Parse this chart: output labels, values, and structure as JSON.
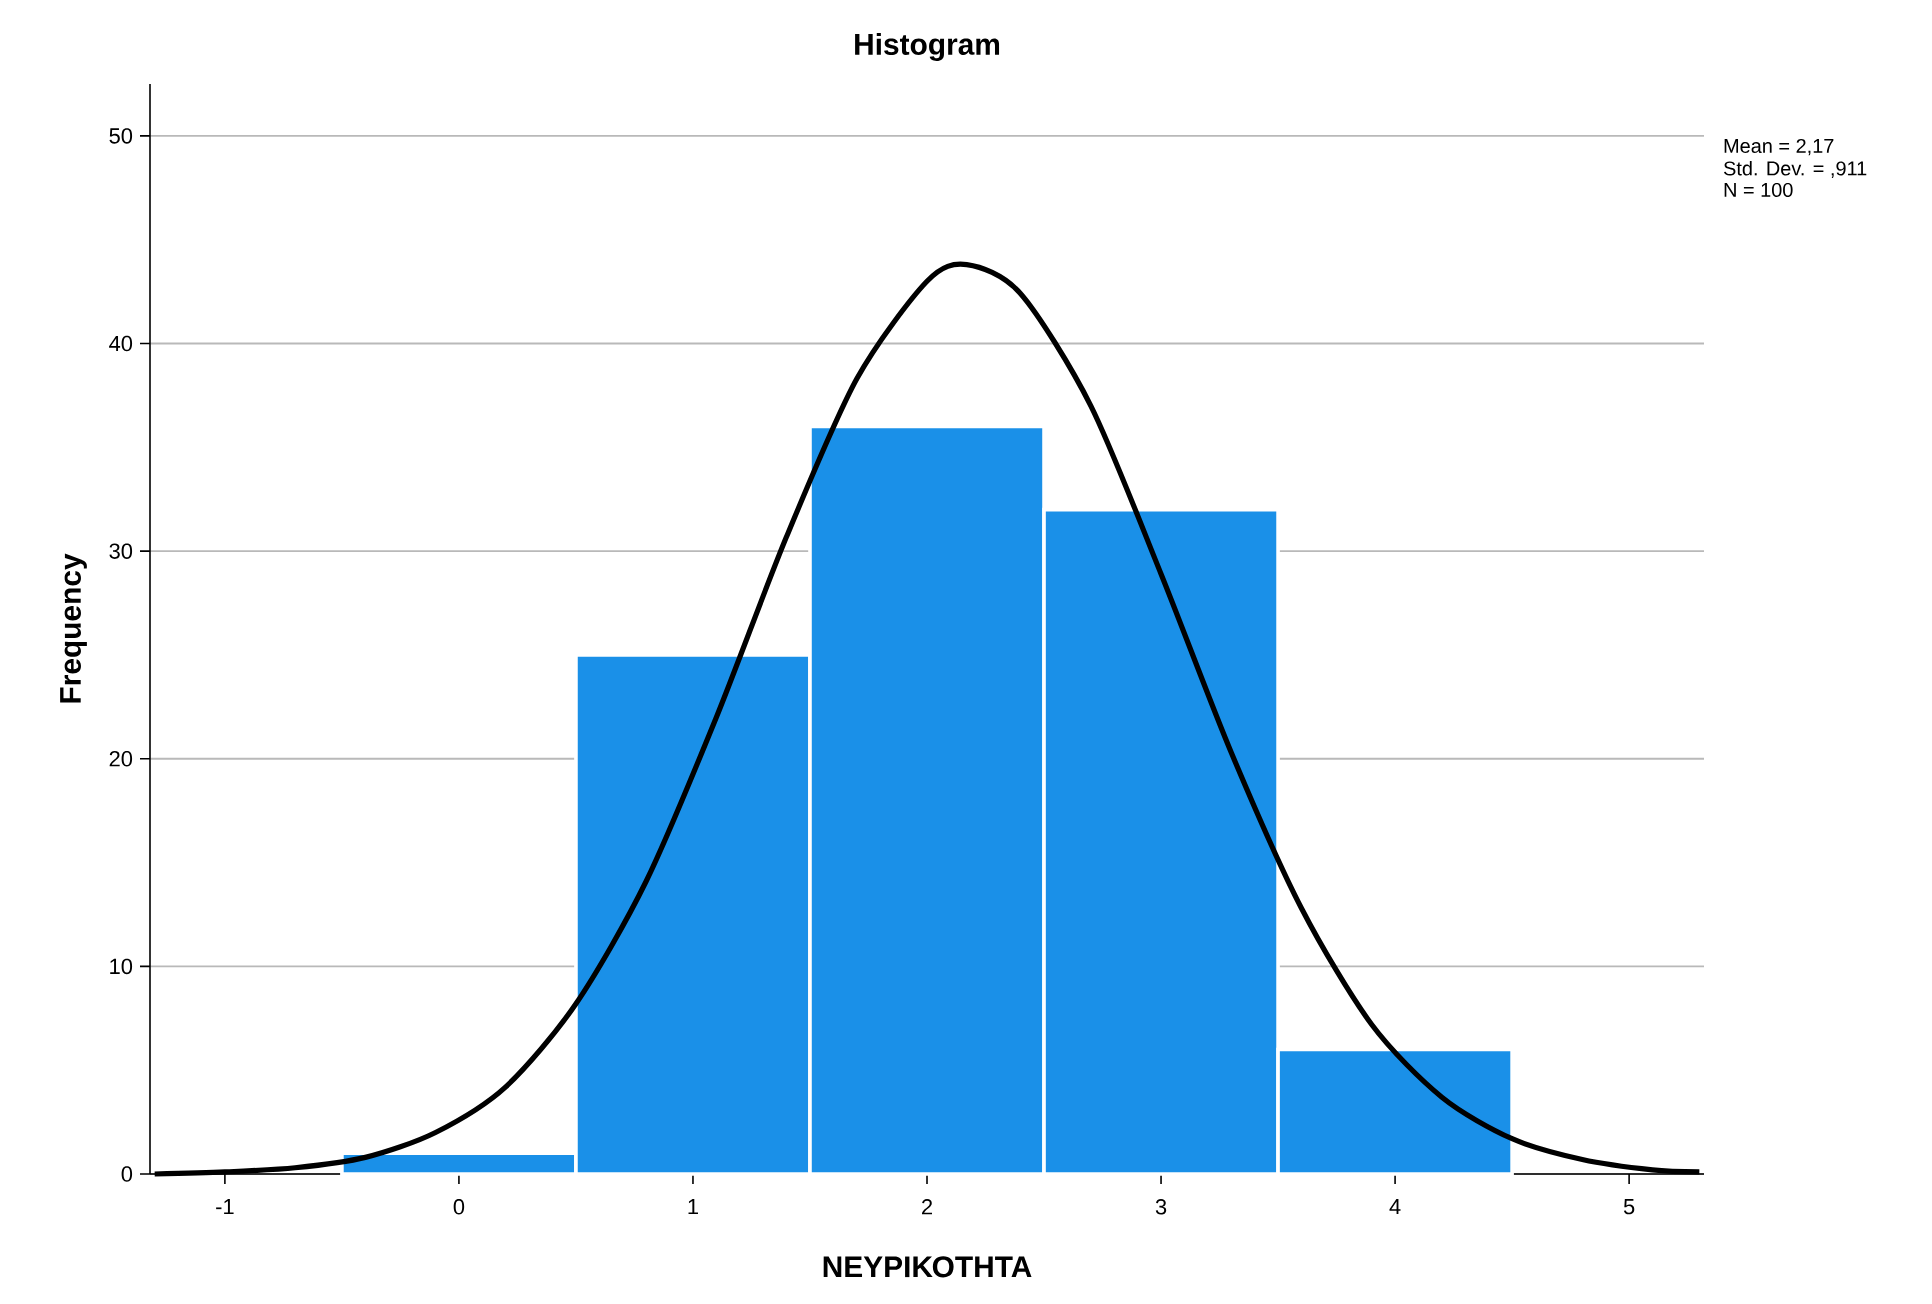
{
  "chart_data": {
    "type": "histogram",
    "title": "Histogram",
    "xlabel": "ΝΕΥΡΙΚΟΤΗΤΑ",
    "ylabel": "Frequency",
    "bins": [
      -0.5,
      0.5,
      1.5,
      2.5,
      3.5,
      4.5
    ],
    "values": [
      1,
      25,
      36,
      32,
      6
    ],
    "color": "#1a90e8",
    "series": [
      {
        "type": "line",
        "color": "#000000",
        "x": [
          -1.3,
          -1.0,
          -0.7,
          -0.4,
          -0.1,
          0.2,
          0.5,
          0.8,
          1.1,
          1.4,
          1.7,
          2.0,
          2.17,
          2.4,
          2.7,
          3.0,
          3.3,
          3.6,
          3.9,
          4.2,
          4.5,
          4.8,
          5.1,
          5.3
        ],
        "values": [
          0.0,
          0.1,
          0.3,
          0.8,
          2.0,
          4.2,
          8.2,
          14.1,
          22.0,
          30.7,
          38.3,
          43.0,
          43.8,
          42.4,
          37.0,
          28.9,
          20.3,
          12.8,
          7.2,
          3.7,
          1.7,
          0.7,
          0.2,
          0.1
        ]
      }
    ],
    "xlim": [
      -1.32,
      5.32
    ],
    "xticks": [
      -1,
      0,
      1,
      2,
      3,
      4,
      5
    ],
    "ylim": [
      0,
      52.5
    ],
    "yticks": [
      0,
      10,
      20,
      30,
      40,
      50
    ],
    "grid": "y",
    "annotations": [
      "Mean = 2,17",
      "Std. Dev. = ,911",
      "N = 100"
    ]
  }
}
